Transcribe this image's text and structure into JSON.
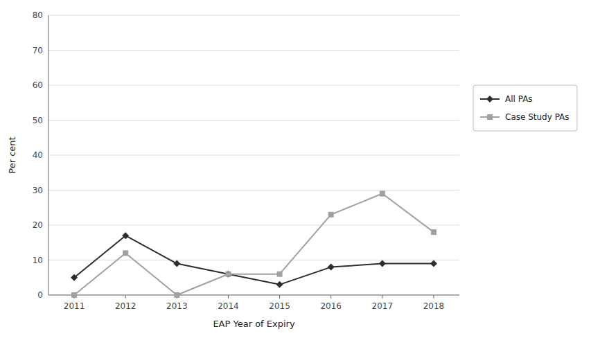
{
  "chart_data": {
    "type": "line",
    "x": [
      2011,
      2012,
      2013,
      2014,
      2015,
      2016,
      2017,
      2018
    ],
    "series": [
      {
        "name": "All PAs",
        "color": "#2d2d2d",
        "marker": "diamond",
        "values": [
          5,
          17,
          9,
          6,
          3,
          8,
          9,
          9
        ]
      },
      {
        "name": "Case Study PAs",
        "color": "#a0a0a0",
        "marker": "square",
        "values": [
          0,
          12,
          0,
          6,
          6,
          23,
          29,
          18
        ]
      }
    ],
    "x_label": "EAP Year of Expiry",
    "y_label": "Per cent",
    "xlim": [
      2010.5,
      2018.5
    ],
    "xticks": [
      2011,
      2012,
      2013,
      2014,
      2015,
      2016,
      2017,
      2018
    ],
    "ylim": [
      0,
      80
    ],
    "yticks": [
      0,
      10,
      20,
      30,
      40,
      50,
      60,
      70,
      80
    ],
    "grid": "y",
    "legend": "right"
  }
}
